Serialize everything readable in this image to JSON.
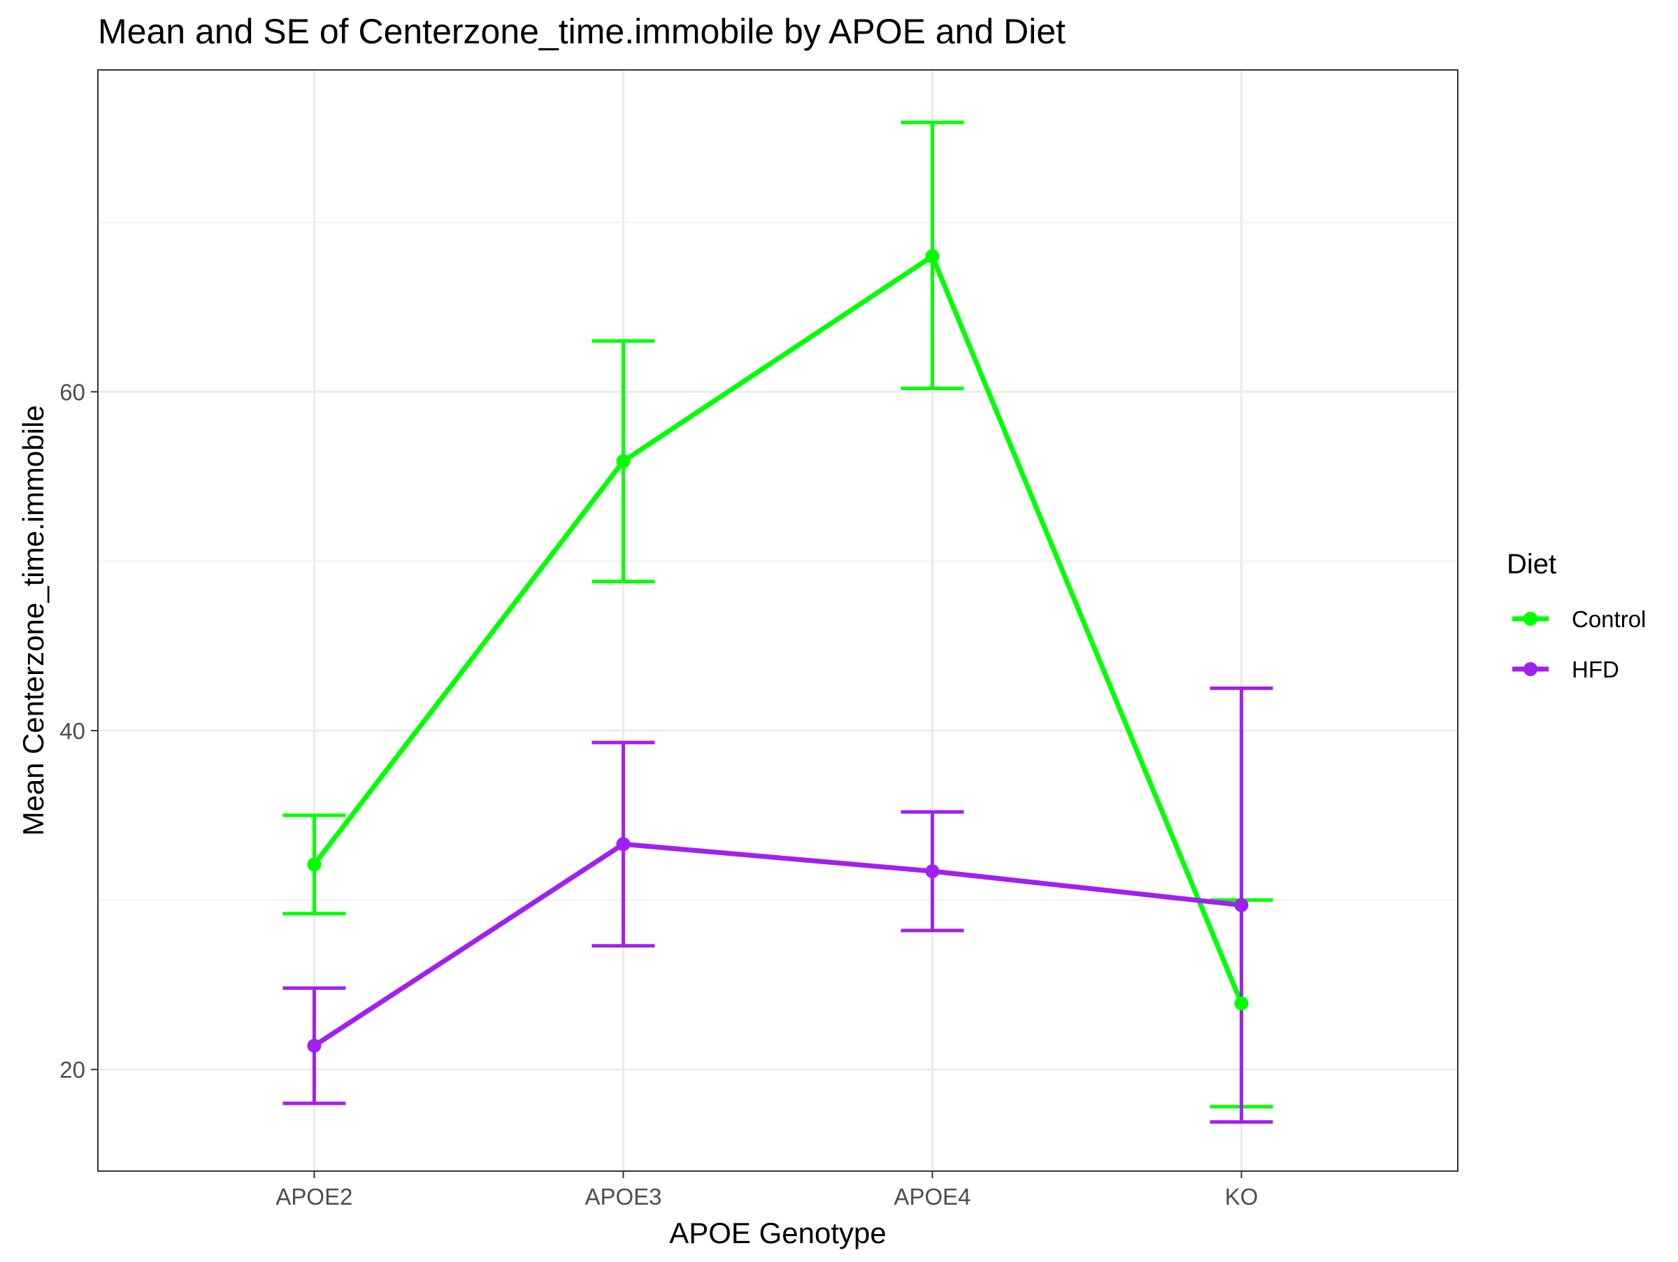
{
  "chart_data": {
    "type": "line",
    "title": "Mean and SE of Centerzone_time.immobile by APOE and Diet",
    "xlabel": "APOE Genotype",
    "ylabel": "Mean Centerzone_time.immobile",
    "categories": [
      "APOE2",
      "APOE3",
      "APOE4",
      "KO"
    ],
    "ylim": [
      14,
      79
    ],
    "yticks": [
      20,
      40,
      60
    ],
    "y_minor_ticks": [
      30,
      50,
      70
    ],
    "grid": true,
    "legend": {
      "title": "Diet",
      "placement": "right"
    },
    "series": [
      {
        "name": "Control",
        "color": "#00ff00",
        "values": [
          32.1,
          55.9,
          68.0,
          23.9
        ],
        "se_lower": [
          29.2,
          48.8,
          60.2,
          17.8
        ],
        "se_upper": [
          35.0,
          63.0,
          75.9,
          30.0
        ]
      },
      {
        "name": "HFD",
        "color": "#a020f0",
        "values": [
          21.4,
          33.3,
          31.7,
          29.7
        ],
        "se_lower": [
          18.0,
          27.3,
          28.2,
          16.9
        ],
        "se_upper": [
          24.8,
          39.3,
          35.2,
          42.5
        ]
      }
    ]
  }
}
